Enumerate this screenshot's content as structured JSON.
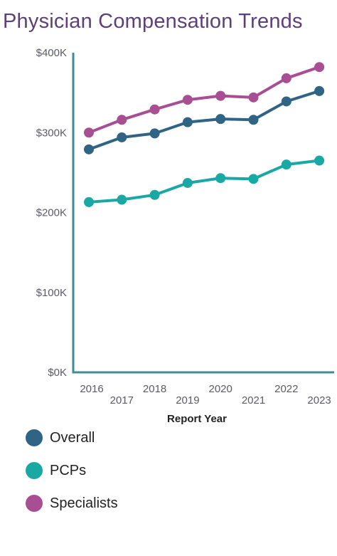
{
  "title": "Physician Compensation Trends",
  "colors": {
    "title": "#5d3f7a",
    "axis": "#3e8e98",
    "tick_text": "#5b5b66",
    "overall": "#2f6485",
    "pcps": "#1aa8a4",
    "specialists": "#a84e93"
  },
  "chart_data": {
    "type": "line",
    "title": "Physician Compensation Trends",
    "xlabel": "Report Year",
    "ylabel": "",
    "categories": [
      "2016",
      "2017",
      "2018",
      "2019",
      "2020",
      "2021",
      "2022",
      "2023"
    ],
    "yticks": [
      "$0K",
      "$100K",
      "$200K",
      "$300K",
      "$400K"
    ],
    "ylim": [
      0,
      400000
    ],
    "grid": false,
    "legend_position": "bottom",
    "series": [
      {
        "name": "Overall",
        "color": "#2f6485",
        "values": [
          279000,
          294000,
          299000,
          313000,
          317000,
          316000,
          339000,
          352000
        ]
      },
      {
        "name": "PCPs",
        "color": "#1aa8a4",
        "values": [
          213000,
          216000,
          222000,
          237000,
          243000,
          242000,
          260000,
          265000
        ]
      },
      {
        "name": "Specialists",
        "color": "#a84e93",
        "values": [
          300000,
          316000,
          329000,
          341000,
          346000,
          344000,
          368000,
          382000
        ]
      }
    ]
  },
  "legend": [
    {
      "label": "Overall",
      "color": "#2f6485"
    },
    {
      "label": "PCPs",
      "color": "#1aa8a4"
    },
    {
      "label": "Specialists",
      "color": "#a84e93"
    }
  ]
}
